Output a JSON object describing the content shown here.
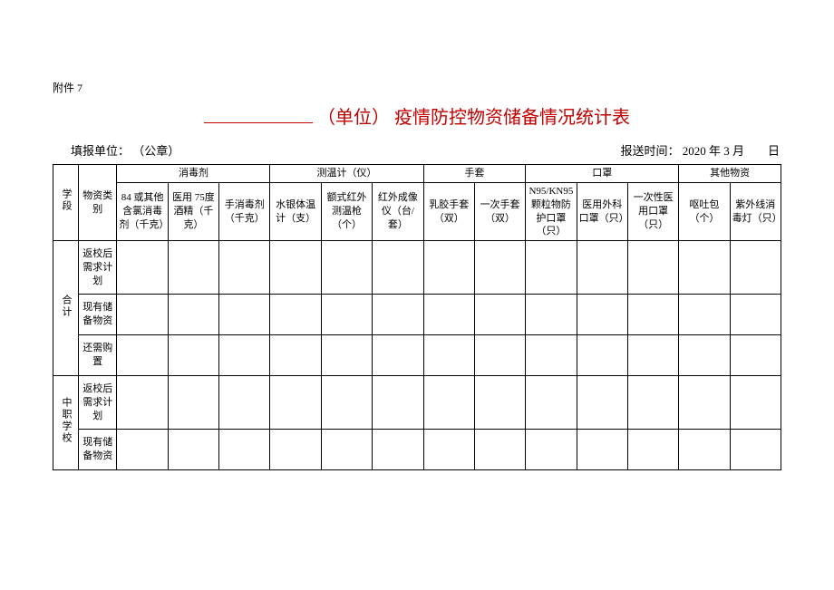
{
  "attachment_label": "附件 7",
  "title": {
    "unit_placeholder": "（单位）",
    "main": "疫情防控物资储备情况统计表"
  },
  "meta": {
    "filing_unit_label": "填报单位：",
    "filing_unit_value": "（公章）",
    "report_time_label": "报送时间：",
    "report_time_value": "2020 年 3 月　　日"
  },
  "header": {
    "col_segment": "学段",
    "col_category": "物资类别",
    "groups": {
      "disinfectant": "消毒剂",
      "thermometer": "测温计（仪）",
      "gloves": "手套",
      "masks": "口罩",
      "other": "其他物资"
    },
    "cols": {
      "c1": "84 或其他含氯消毒剂（千克）",
      "c2": "医用 75度酒精（千克）",
      "c3": "手消毒剂（千克）",
      "c4": "水银体温计（支）",
      "c5": "额式红外测温枪（个）",
      "c6": "红外成像仪（台/套）",
      "c7": "乳胶手套（双）",
      "c8": "一次手套（双）",
      "c9": "N95/KN95颗粒物防护口罩（只）",
      "c10": "医用外科口罩（只）",
      "c11": "一次性医用口罩（只）",
      "c12": "呕吐包（个）",
      "c13": "紫外线消毒灯（只）"
    }
  },
  "segments": [
    {
      "name": "合计",
      "rows": [
        "返校后需求计划",
        "现有储备物资",
        "还需购置"
      ]
    },
    {
      "name": "中职学校",
      "rows": [
        "返校后需求计划",
        "现有储备物资"
      ]
    }
  ]
}
